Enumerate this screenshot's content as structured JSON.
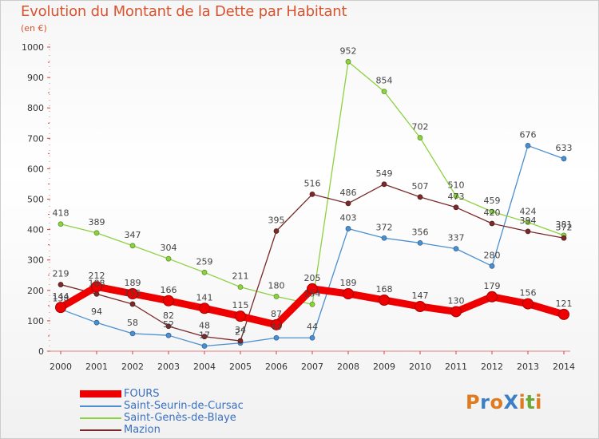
{
  "header": {
    "title": "Evolution du Montant de la Dette par Habitant",
    "unit": "(en €)"
  },
  "logo": {
    "text": "ProXiti",
    "colors": [
      "#e07a1f",
      "#3d7fc4",
      "#e07a1f",
      "#3d7fc4",
      "#e07a1f",
      "#6aaa33",
      "#e07a1f"
    ]
  },
  "chart_data": {
    "type": "line",
    "title": "Evolution du Montant de la Dette par Habitant",
    "ylabel": "(en €)",
    "xlabel": "",
    "x": [
      "2000",
      "2001",
      "2002",
      "2003",
      "2004",
      "2005",
      "2006",
      "2007",
      "2008",
      "2009",
      "2010",
      "2011",
      "2012",
      "2013",
      "2014"
    ],
    "ylim": [
      0,
      1000
    ],
    "yticks": [
      0,
      100,
      200,
      300,
      400,
      500,
      600,
      700,
      800,
      900,
      1000
    ],
    "grid": false,
    "legend_position": "bottom-left",
    "series": [
      {
        "name": "FOURS",
        "color": "#ee0000",
        "emphasis": true,
        "values": [
          144,
          212,
          189,
          166,
          141,
          115,
          87,
          205,
          189,
          168,
          147,
          130,
          179,
          156,
          121
        ],
        "labels": [
          "144",
          "212",
          "189",
          "166",
          "141",
          "115",
          "87",
          "205",
          "189",
          "168",
          "147",
          "130",
          "179",
          "156",
          "121"
        ]
      },
      {
        "name": "Saint-Seurin-de-Cursac",
        "color": "#4a8fd0",
        "values": [
          138,
          94,
          58,
          52,
          17,
          27,
          44,
          44,
          403,
          372,
          356,
          337,
          280,
          676,
          633
        ],
        "labels": [
          "138",
          "94",
          "58",
          "52",
          "17",
          "27",
          "44",
          "44",
          "403",
          "372",
          "356",
          "337",
          "280",
          "676",
          "633"
        ]
      },
      {
        "name": "Saint-Genès-de-Blaye",
        "color": "#8cd13f",
        "values": [
          418,
          389,
          347,
          304,
          259,
          211,
          180,
          154,
          952,
          854,
          702,
          510,
          459,
          424,
          381
        ],
        "labels": [
          "418",
          "389",
          "347",
          "304",
          "259",
          "211",
          "180",
          "154",
          "952",
          "854",
          "702",
          "510",
          "459",
          "424",
          "381"
        ]
      },
      {
        "name": "Mazion",
        "color": "#7a2a2a",
        "values": [
          219,
          188,
          155,
          82,
          48,
          34,
          395,
          516,
          486,
          549,
          507,
          473,
          420,
          394,
          372
        ],
        "labels": [
          "219",
          "188",
          "155",
          "82",
          "48",
          "34",
          "395",
          "516",
          "486",
          "549",
          "507",
          "473",
          "420",
          "394",
          "372"
        ]
      }
    ]
  }
}
